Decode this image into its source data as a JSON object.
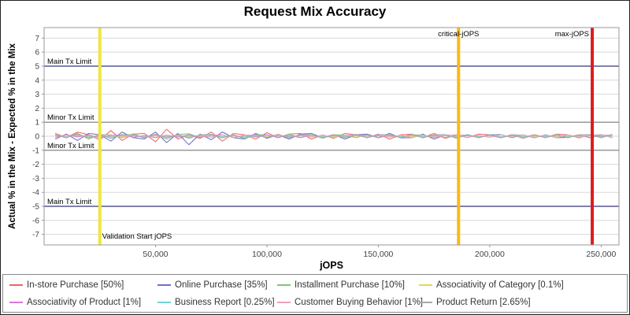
{
  "chart_data": {
    "type": "line",
    "title": "Request Mix Accuracy",
    "xlabel": "jOPS",
    "ylabel": "Actual % in the Mix - Expected % in the Mix",
    "xlim": [
      0,
      258000
    ],
    "ylim": [
      -7.75,
      7.75
    ],
    "grid": "horizontal",
    "legend_position": "bottom",
    "grid_color": "#d8d8d8",
    "axis_color": "#9a9a9a",
    "tick_label_color": "#444444",
    "y_ticks": [
      -7,
      -6,
      -5,
      -4,
      -3,
      -2,
      -1,
      0,
      1,
      2,
      3,
      4,
      5,
      6,
      7
    ],
    "x_ticks": [
      50000,
      100000,
      150000,
      200000,
      250000
    ],
    "x_tick_labels": [
      "50,000",
      "100,000",
      "150,000",
      "200,000",
      "250,000"
    ],
    "ref_lines": [
      {
        "y": 5,
        "label": "Main Tx Limit",
        "color": "#34347c"
      },
      {
        "y": 1,
        "label": "Minor Tx Limit",
        "color": "#7f7f7f"
      },
      {
        "y": -1,
        "label": "Minor Tx Limit",
        "color": "#7f7f7f"
      },
      {
        "y": -5,
        "label": "Main Tx Limit",
        "color": "#34347c"
      }
    ],
    "v_markers": [
      {
        "x": 25000,
        "label": "Validation Start jOPS",
        "color": "#efe73a",
        "width": 4,
        "label_pos": "bottom-right"
      },
      {
        "x": 186000,
        "label": "critical-jOPS",
        "color": "#fdb813",
        "width": 4,
        "label_pos": "top-center"
      },
      {
        "x": 246000,
        "label": "max-jOPS",
        "color": "#dd1c1c",
        "width": 4,
        "label_pos": "top-left"
      }
    ],
    "x": [
      5000,
      10000,
      15000,
      20000,
      25000,
      30000,
      35000,
      40000,
      45000,
      50000,
      55000,
      60000,
      65000,
      70000,
      75000,
      80000,
      85000,
      90000,
      95000,
      100000,
      105000,
      110000,
      115000,
      120000,
      125000,
      130000,
      135000,
      140000,
      145000,
      150000,
      155000,
      160000,
      165000,
      170000,
      175000,
      180000,
      185000,
      190000,
      195000,
      200000,
      205000,
      210000,
      215000,
      220000,
      225000,
      230000,
      235000,
      240000,
      245000,
      250000,
      255000
    ],
    "series": [
      {
        "name": "In-store Purchase [50%]",
        "color": "#ee6666",
        "values": [
          0.2,
          -0.1,
          0.3,
          0.1,
          -0.25,
          0.4,
          -0.3,
          0.15,
          0.2,
          -0.4,
          0.5,
          -0.2,
          0.1,
          -0.15,
          0.3,
          -0.35,
          0.2,
          0.1,
          -0.2,
          0.25,
          -0.1,
          0.15,
          0.2,
          -0.2,
          0.1,
          -0.15,
          0.2,
          0.1,
          -0.1,
          0.15,
          -0.2,
          0.1,
          0.15,
          -0.1,
          0.2,
          -0.15,
          0.1,
          -0.1,
          0.15,
          0.1,
          -0.1,
          0.12,
          -0.15,
          0.1,
          -0.1,
          0.15,
          0.1,
          -0.12,
          0.1,
          -0.1,
          0.12
        ]
      },
      {
        "name": "Online Purchase [35%]",
        "color": "#7070c8",
        "values": [
          -0.2,
          0.15,
          -0.3,
          0.2,
          0.1,
          -0.35,
          0.3,
          -0.1,
          -0.2,
          0.3,
          -0.45,
          0.2,
          -0.6,
          0.15,
          -0.25,
          0.3,
          -0.1,
          -0.2,
          0.2,
          -0.15,
          0.1,
          -0.2,
          0.15,
          0.2,
          -0.1,
          0.12,
          -0.2,
          0.1,
          0.15,
          -0.1,
          0.2,
          -0.12,
          -0.1,
          0.15,
          -0.2,
          0.1,
          -0.1,
          0.12,
          -0.1,
          0.1,
          0.12,
          -0.1,
          0.1,
          -0.12,
          0.1,
          -0.1,
          -0.08,
          0.1,
          -0.1,
          0.12,
          -0.1
        ]
      },
      {
        "name": "Installment Purchase [10%]",
        "color": "#79c879",
        "values": [
          0.1,
          -0.12,
          0.2,
          -0.2,
          0.12,
          0.1,
          -0.1,
          0.18,
          -0.12,
          0.1,
          -0.2,
          0.12,
          0.18,
          -0.1,
          0.1,
          -0.12,
          0.1,
          -0.18,
          0.12,
          0.1,
          -0.1,
          0.15,
          -0.1,
          0.1,
          -0.12,
          0.1,
          0.08,
          -0.1,
          0.12,
          -0.1,
          0.1,
          -0.08,
          0.1,
          0.08,
          -0.1,
          0.1,
          -0.08,
          0.08,
          -0.1,
          0.1,
          -0.08,
          0.1,
          0.08,
          -0.1,
          0.08,
          -0.08,
          0.1,
          -0.08,
          0.08,
          0.1,
          -0.08
        ]
      },
      {
        "name": "Associativity of Category [0.1%]",
        "color": "#e6d84a",
        "values": [
          0.02,
          -0.03,
          0.04,
          0,
          -0.04,
          0.03,
          -0.02,
          0.04,
          -0.03,
          0.02,
          -0.04,
          0.03,
          0,
          -0.03,
          0.04,
          -0.02,
          0.03,
          -0.04,
          0.02,
          0,
          0.03,
          -0.02,
          0.04,
          -0.03,
          0.02,
          -0.04,
          0.03,
          0,
          -0.03,
          0.04,
          -0.02,
          0.03,
          -0.04,
          0.02,
          0,
          0.03,
          -0.02,
          0.04,
          -0.03,
          0.02,
          -0.04,
          0.03,
          0,
          -0.03,
          0.04,
          -0.02,
          0.03,
          -0.04,
          0.02,
          0,
          0.03
        ]
      },
      {
        "name": "Associativity of Product [1%]",
        "color": "#d878d8",
        "values": [
          -0.08,
          0.1,
          -0.05,
          0.08,
          -0.1,
          0.06,
          0.1,
          -0.08,
          0.05,
          -0.1,
          0.08,
          -0.06,
          0.1,
          -0.08,
          0.06,
          0.1,
          -0.1,
          0.08,
          -0.05,
          0.1,
          -0.08,
          0.06,
          -0.1,
          0.08,
          -0.06,
          0.1,
          -0.08,
          0.05,
          0.08,
          -0.1,
          0.06,
          -0.08,
          0.1,
          -0.06,
          0.08,
          -0.1,
          0.05,
          0.08,
          -0.08,
          0.06,
          -0.1,
          0.08,
          -0.06,
          0.1,
          -0.08,
          0.06,
          -0.05,
          0.08,
          -0.1,
          0.06,
          0.08
        ]
      },
      {
        "name": "Business Report [0.25%]",
        "color": "#72d4d4",
        "values": [
          0.05,
          -0.04,
          0.06,
          -0.05,
          0.04,
          -0.06,
          0.05,
          0.04,
          -0.05,
          0.06,
          -0.04,
          0.05,
          -0.06,
          0.04,
          0.05,
          -0.04,
          0.06,
          -0.05,
          0.04,
          -0.06,
          0.05,
          -0.04,
          0.04,
          0.06,
          -0.05,
          0.04,
          -0.04,
          0.05,
          -0.06,
          0.04,
          0.05,
          -0.04,
          0.06,
          -0.05,
          0.04,
          0.05,
          -0.06,
          0.04,
          -0.04,
          0.05,
          -0.05,
          0.04,
          -0.06,
          0.05,
          -0.04,
          0.06,
          -0.05,
          0.04,
          0.05,
          -0.04,
          0.05
        ]
      },
      {
        "name": "Customer Buying Behavior [1%]",
        "color": "#f2a0bc",
        "values": [
          0.09,
          -0.07,
          0.1,
          -0.09,
          0.07,
          0.1,
          -0.1,
          0.07,
          -0.09,
          0.1,
          -0.07,
          0.09,
          -0.1,
          0.07,
          -0.08,
          0.1,
          -0.09,
          0.07,
          0.1,
          -0.08,
          0.09,
          -0.1,
          0.07,
          -0.07,
          0.09,
          -0.1,
          0.08,
          0.07,
          -0.09,
          0.1,
          -0.07,
          0.08,
          -0.1,
          0.09,
          -0.07,
          0.08,
          0.1,
          -0.09,
          0.07,
          -0.08,
          0.1,
          -0.07,
          0.09,
          -0.08,
          0.07,
          -0.1,
          0.09,
          -0.07,
          0.08,
          0.1,
          -0.09
        ]
      },
      {
        "name": "Product Return [2.65%]",
        "color": "#a8a8a8",
        "values": [
          0.12,
          -0.1,
          0.15,
          -0.12,
          0.1,
          -0.15,
          0.12,
          0.1,
          -0.12,
          0.15,
          -0.1,
          0.12,
          -0.15,
          0.1,
          0.14,
          -0.12,
          0.1,
          -0.14,
          0.12,
          -0.1,
          0.14,
          -0.12,
          0.1,
          0.12,
          -0.14,
          0.1,
          -0.1,
          0.14,
          -0.12,
          0.1,
          0.12,
          -0.1,
          0.14,
          -0.12,
          0.1,
          0.12,
          -0.14,
          0.1,
          -0.1,
          0.12,
          -0.12,
          0.1,
          -0.14,
          0.12,
          -0.1,
          0.14,
          -0.12,
          0.1,
          0.12,
          -0.1,
          0.14
        ]
      }
    ]
  }
}
